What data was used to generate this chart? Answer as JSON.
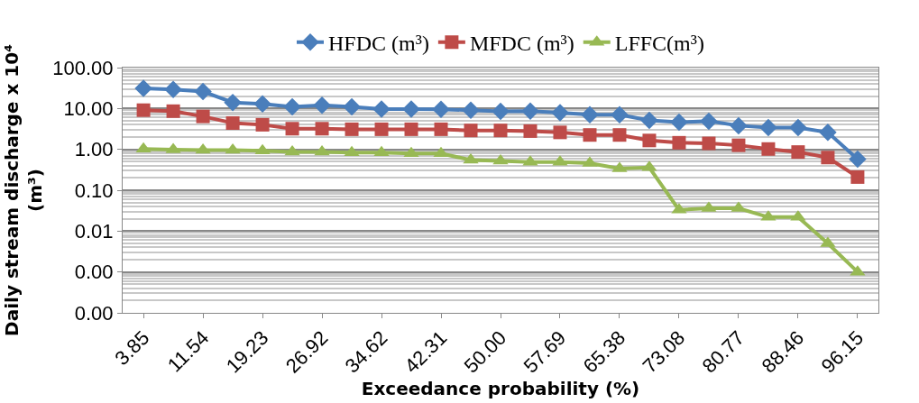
{
  "chart_data": {
    "type": "line",
    "xlabel": "Exceedance probability (%)",
    "ylabel": "Daily stream discharge x 10⁴ (m³)",
    "categories": [
      "3.85",
      null,
      "11.54",
      null,
      "19.23",
      null,
      "26.92",
      null,
      "34.62",
      null,
      "42.31",
      null,
      "50.00",
      null,
      "57.69",
      null,
      "65.38",
      null,
      "73.08",
      null,
      "80.77",
      null,
      "88.46",
      null,
      "96.15"
    ],
    "series": [
      {
        "name": "HFDC (m³)",
        "color": "#4a7ebb",
        "marker": "diamond",
        "values": [
          31,
          29,
          26,
          14,
          13,
          11,
          12,
          11,
          9.7,
          9.7,
          9.5,
          9.1,
          8.5,
          8.6,
          7.9,
          7.0,
          7.0,
          5.1,
          4.6,
          4.9,
          3.8,
          3.4,
          3.4,
          2.6,
          0.58
        ]
      },
      {
        "name": "MFDC (m³)",
        "color": "#be4b48",
        "marker": "square",
        "values": [
          9.1,
          8.6,
          6.4,
          4.4,
          4.0,
          3.2,
          3.2,
          3.1,
          3.1,
          3.1,
          3.1,
          2.9,
          2.9,
          2.8,
          2.6,
          2.25,
          2.25,
          1.65,
          1.45,
          1.4,
          1.26,
          1.02,
          0.86,
          0.63,
          0.21
        ]
      },
      {
        "name": "LFFC(m³)",
        "color": "#98b954",
        "marker": "triangle",
        "values": [
          1.02,
          0.98,
          0.96,
          0.96,
          0.92,
          0.87,
          0.87,
          0.83,
          0.83,
          0.79,
          0.79,
          0.55,
          0.52,
          0.49,
          0.49,
          0.46,
          0.34,
          0.36,
          0.033,
          0.036,
          0.036,
          0.022,
          0.022,
          0.005,
          0.001
        ]
      }
    ],
    "log": true,
    "ylim": [
      0.0001,
      100
    ],
    "yticks": [
      {
        "value": 0.0001,
        "label": "0.00"
      },
      {
        "value": 0.001,
        "label": "0.00"
      },
      {
        "value": 0.01,
        "label": "0.01"
      },
      {
        "value": 0.1,
        "label": "0.10"
      },
      {
        "value": 1,
        "label": "1.00"
      },
      {
        "value": 10,
        "label": "10.00"
      },
      {
        "value": 100,
        "label": "100.00"
      }
    ],
    "grid": "y",
    "legend": "top"
  }
}
